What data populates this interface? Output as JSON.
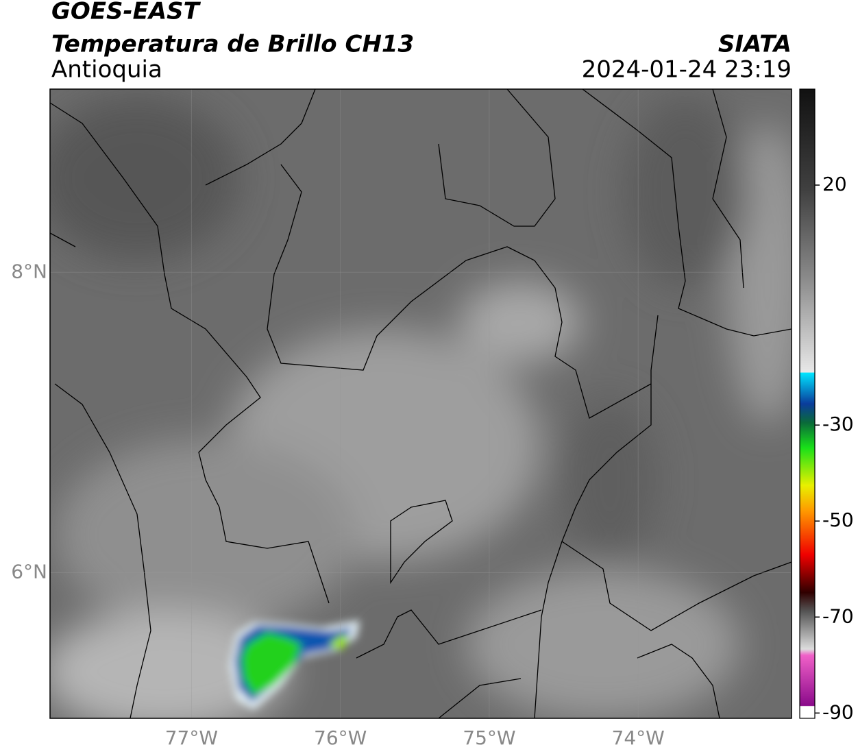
{
  "header": {
    "satellite": "GOES-EAST",
    "product": "Temperatura de Brillo CH13",
    "region": "Antioquia",
    "agency": "SIATA",
    "datetime": "2024-01-24 23:19"
  },
  "map": {
    "xlim": [
      -77.95,
      -72.97
    ],
    "ylim": [
      5.03,
      9.22
    ],
    "xticks": [
      {
        "value": -77,
        "label": "77°W"
      },
      {
        "value": -76,
        "label": "76°W"
      },
      {
        "value": -75,
        "label": "75°W"
      },
      {
        "value": -74,
        "label": "74°W"
      }
    ],
    "yticks": [
      {
        "value": 8,
        "label": "8°N"
      },
      {
        "value": 6,
        "label": "6°N"
      }
    ],
    "grid": true
  },
  "colorbar": {
    "lim": [
      -91.1,
      40
    ],
    "ticks": [
      20,
      -30,
      -50,
      -70,
      -90
    ]
  }
}
